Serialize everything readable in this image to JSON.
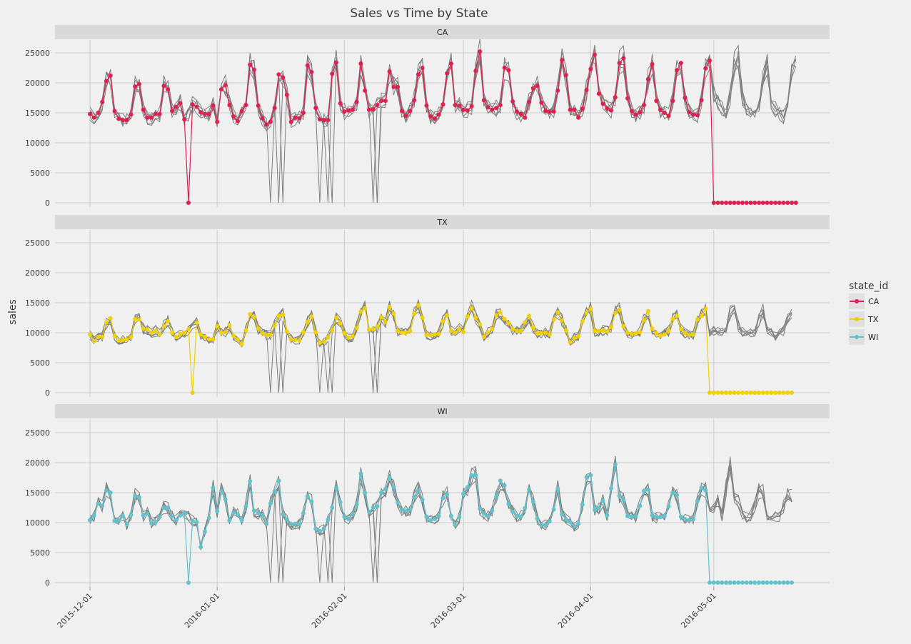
{
  "chart_data": {
    "type": "line",
    "title": "Sales vs Time by State",
    "ylabel": "sales",
    "xlabel": "",
    "x_range": [
      "2015-12-01",
      "2016-05-22"
    ],
    "ylim": [
      0,
      25000
    ],
    "y_ticks": [
      0,
      5000,
      10000,
      15000,
      20000,
      25000
    ],
    "y_tick_labels": [
      "0",
      "5000",
      "10000",
      "15000",
      "20000",
      "25000"
    ],
    "x_ticks": [
      "2015-12-01",
      "2016-01-01",
      "2016-02-01",
      "2016-03-01",
      "2016-04-01",
      "2016-05-01"
    ],
    "x_tick_labels": [
      "2015-12-01",
      "2016-01-01",
      "2016-02-01",
      "2016-03-01",
      "2016-04-01",
      "2016-05-01"
    ],
    "facets": [
      "CA",
      "TX",
      "WI"
    ],
    "grid": true,
    "legend": {
      "title": "state_id",
      "position": "right",
      "entries": [
        {
          "label": "CA",
          "color": "#e0204f"
        },
        {
          "label": "TX",
          "color": "#f0d000"
        },
        {
          "label": "WI",
          "color": "#62c3cd"
        }
      ]
    },
    "forecast_line_color": "#808080",
    "series": [
      {
        "name": "CA",
        "color": "#e0204f",
        "start_date": "2015-12-01",
        "values": [
          14800,
          14200,
          15000,
          16800,
          20300,
          21200,
          15300,
          14000,
          13800,
          13800,
          14700,
          19400,
          19800,
          15500,
          14200,
          14200,
          14800,
          14800,
          19500,
          18900,
          15300,
          16000,
          16600,
          13900,
          0,
          16400,
          16000,
          15100,
          14800,
          14800,
          16200,
          13500,
          18900,
          19600,
          16300,
          14400,
          13600,
          15300,
          16300,
          23000,
          22200,
          16200,
          14100,
          13000,
          13500,
          15800,
          21400,
          20900,
          18000,
          13500,
          14200,
          14100,
          15000,
          22900,
          21800,
          15800,
          13900,
          13800,
          13800,
          21500,
          23400,
          16600,
          15200,
          15400,
          15500,
          16800,
          23200,
          18700,
          15500,
          15600,
          16300,
          17000,
          17000,
          21900,
          19300,
          19300,
          15300,
          14500,
          15300,
          17100,
          21400,
          22500,
          16200,
          14400,
          14000,
          14700,
          16400,
          21600,
          23200,
          16300,
          16200,
          15500,
          15400,
          16100,
          22000,
          25200,
          17100,
          15900,
          15500,
          15800,
          16300,
          22500,
          22100,
          16900,
          15200,
          14800,
          14200,
          16800,
          19100,
          19500,
          16700,
          15300,
          15200,
          15200,
          18700,
          23800,
          21300,
          15500,
          15500,
          14200,
          15700,
          18800,
          22300,
          24700,
          18200,
          16500,
          15700,
          15400,
          17600,
          23300,
          24100,
          17400,
          15300,
          14700,
          15100,
          16300,
          20600,
          23100,
          17000,
          15500,
          15000,
          14500,
          17000,
          22100,
          23300,
          17500,
          15100,
          14700,
          14600,
          17100,
          22400,
          23700,
          0,
          0,
          0,
          0,
          0,
          0,
          0,
          0,
          0,
          0,
          0,
          0,
          0,
          0,
          0,
          0,
          0,
          0,
          0,
          0,
          0
        ]
      },
      {
        "name": "TX",
        "color": "#f0d000",
        "start_date": "2015-12-01",
        "values": [
          9700,
          8600,
          9300,
          9300,
          11700,
          12400,
          9500,
          8700,
          8800,
          8900,
          9300,
          12300,
          12200,
          10700,
          10500,
          10000,
          10300,
          9700,
          11100,
          11900,
          10000,
          9300,
          9800,
          10000,
          10600,
          0,
          11700,
          9700,
          9300,
          8900,
          8900,
          11100,
          10000,
          10100,
          11200,
          9500,
          8900,
          8100,
          10400,
          13100,
          12600,
          10700,
          9900,
          9600,
          9600,
          11200,
          12800,
          13000,
          10200,
          8900,
          8800,
          8700,
          10100,
          11800,
          12700,
          10100,
          8300,
          8500,
          9200,
          10400,
          12500,
          11600,
          9900,
          9200,
          9400,
          10800,
          13500,
          14100,
          10500,
          10600,
          11000,
          12600,
          11800,
          14300,
          13200,
          10300,
          10000,
          10000,
          10300,
          13200,
          14600,
          12500,
          9600,
          9600,
          9700,
          9800,
          11900,
          12900,
          10300,
          10000,
          10700,
          10100,
          12700,
          14100,
          12500,
          11400,
          9300,
          10100,
          10600,
          12900,
          13400,
          12300,
          11600,
          10600,
          10300,
          10300,
          11700,
          12800,
          10900,
          9900,
          9900,
          10000,
          9700,
          12200,
          13400,
          12100,
          10400,
          8400,
          9100,
          9400,
          11900,
          13300,
          14000,
          10300,
          10300,
          10400,
          10200,
          10900,
          13300,
          13800,
          11100,
          10000,
          9800,
          9900,
          10100,
          12100,
          13600,
          10700,
          9900,
          9500,
          9700,
          10300,
          12300,
          12800,
          10600,
          9900,
          9600,
          9700,
          12200,
          12800,
          14000,
          0,
          0,
          0,
          0,
          0,
          0,
          0,
          0,
          0,
          0,
          0,
          0,
          0,
          0,
          0,
          0,
          0,
          0,
          0,
          0,
          0
        ]
      },
      {
        "name": "WI",
        "color": "#62c3cd",
        "start_date": "2015-12-01",
        "values": [
          10400,
          11200,
          13200,
          12800,
          15400,
          15000,
          10300,
          10400,
          11100,
          9700,
          11300,
          14500,
          14200,
          11200,
          11500,
          9900,
          10100,
          11000,
          12500,
          12500,
          11000,
          10400,
          11200,
          11600,
          0,
          10300,
          10100,
          5900,
          8500,
          10800,
          15800,
          11900,
          15300,
          13900,
          10400,
          11700,
          11400,
          10400,
          12700,
          16900,
          12000,
          11600,
          11300,
          9800,
          13200,
          15200,
          17000,
          11400,
          10500,
          9700,
          9800,
          9700,
          11600,
          14400,
          13500,
          9000,
          8600,
          9000,
          10500,
          12500,
          15800,
          13400,
          11000,
          10600,
          11400,
          13000,
          18200,
          15000,
          11800,
          12500,
          12700,
          15000,
          15600,
          17500,
          15900,
          13400,
          12200,
          12000,
          12200,
          14300,
          15400,
          13800,
          11000,
          10400,
          10600,
          11100,
          14100,
          14700,
          11100,
          9600,
          10900,
          14800,
          15900,
          17900,
          17900,
          12300,
          11500,
          11100,
          12000,
          14300,
          17000,
          16200,
          13100,
          11800,
          11100,
          11000,
          12400,
          15500,
          13500,
          10700,
          9600,
          9600,
          10200,
          12200,
          15700,
          11400,
          10500,
          10100,
          9400,
          9800,
          13000,
          17600,
          17900,
          12100,
          12400,
          13600,
          11200,
          15700,
          19700,
          14500,
          13700,
          11100,
          11000,
          11100,
          12800,
          15300,
          15500,
          11200,
          10900,
          10900,
          11100,
          12700,
          15000,
          14600,
          11000,
          10600,
          10400,
          10600,
          13600,
          15800,
          15400,
          0,
          0,
          0,
          0,
          0,
          0,
          0,
          0,
          0,
          0,
          0,
          0,
          0,
          0,
          0,
          0,
          0,
          0,
          0,
          0,
          0
        ]
      }
    ]
  }
}
